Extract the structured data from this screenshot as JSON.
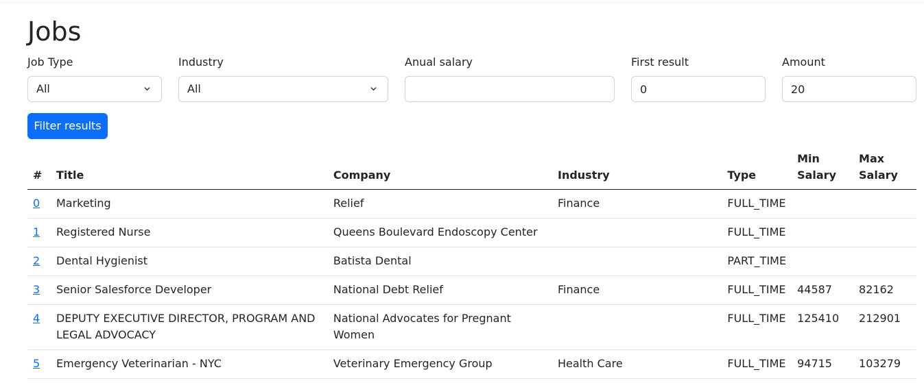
{
  "page": {
    "title": "Jobs"
  },
  "filters": {
    "job_type": {
      "label": "Job Type",
      "value": "All"
    },
    "industry": {
      "label": "Industry",
      "value": "All"
    },
    "annual_salary": {
      "label": "Anual salary",
      "value": ""
    },
    "first_result": {
      "label": "First result",
      "value": "0"
    },
    "amount": {
      "label": "Amount",
      "value": "20"
    },
    "submit_label": "Filter results"
  },
  "table": {
    "headers": [
      "#",
      "Title",
      "Company",
      "Industry",
      "Type",
      "Min Salary",
      "Max Salary"
    ],
    "rows": [
      {
        "id": "0",
        "title": "Marketing",
        "company": "Relief",
        "industry": "Finance",
        "type": "FULL_TIME",
        "min": "",
        "max": ""
      },
      {
        "id": "1",
        "title": "Registered Nurse",
        "company": "Queens Boulevard Endoscopy Center",
        "industry": "",
        "type": "FULL_TIME",
        "min": "",
        "max": ""
      },
      {
        "id": "2",
        "title": "Dental Hygienist",
        "company": "Batista Dental",
        "industry": "",
        "type": "PART_TIME",
        "min": "",
        "max": ""
      },
      {
        "id": "3",
        "title": "Senior Salesforce Developer",
        "company": "National Debt Relief",
        "industry": "Finance",
        "type": "FULL_TIME",
        "min": "44587",
        "max": "82162"
      },
      {
        "id": "4",
        "title": "DEPUTY EXECUTIVE DIRECTOR, PROGRAM AND LEGAL ADVOCACY",
        "company": "National Advocates for Pregnant Women",
        "industry": "",
        "type": "FULL_TIME",
        "min": "125410",
        "max": "212901"
      },
      {
        "id": "5",
        "title": "Emergency Veterinarian - NYC",
        "company": "Veterinary Emergency Group",
        "industry": "Health Care",
        "type": "FULL_TIME",
        "min": "94715",
        "max": "103279"
      }
    ]
  }
}
